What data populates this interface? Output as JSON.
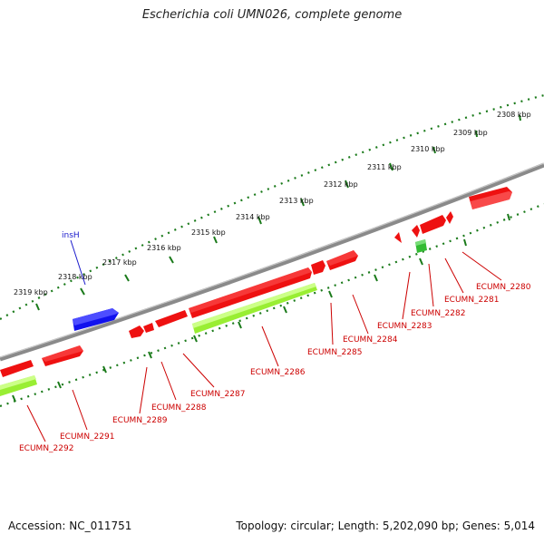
{
  "title": "Escherichia coli UMN026, complete genome",
  "footer": {
    "accession": "Accession: NC_011751",
    "summary": "Topology: circular; Length: 5,202,090 bp; Genes: 5,014"
  },
  "colors": {
    "backbone": "#808080",
    "tick": "#1a7a1a",
    "gene_red": "#ee1111",
    "gene_blue": "#1111ee",
    "gene_green": "#33bb33",
    "cds_lime": "#99ee33",
    "label_red": "#cc0000",
    "label_blue": "#1a1acc"
  },
  "kbp_labels": [
    "2308 kbp",
    "2309 kbp",
    "2310 kbp",
    "2311 kbp",
    "2312 kbp",
    "2313 kbp",
    "2314 kbp",
    "2315 kbp",
    "2316 kbp",
    "2317 kbp",
    "2318 kbp",
    "2319 kbp"
  ],
  "gene_labels": [
    "insH",
    "ECUMN_2280",
    "ECUMN_2281",
    "ECUMN_2282",
    "ECUMN_2283",
    "ECUMN_2284",
    "ECUMN_2285",
    "ECUMN_2286",
    "ECUMN_2287",
    "ECUMN_2288",
    "ECUMN_2289",
    "ECUMN_2291",
    "ECUMN_2292"
  ]
}
